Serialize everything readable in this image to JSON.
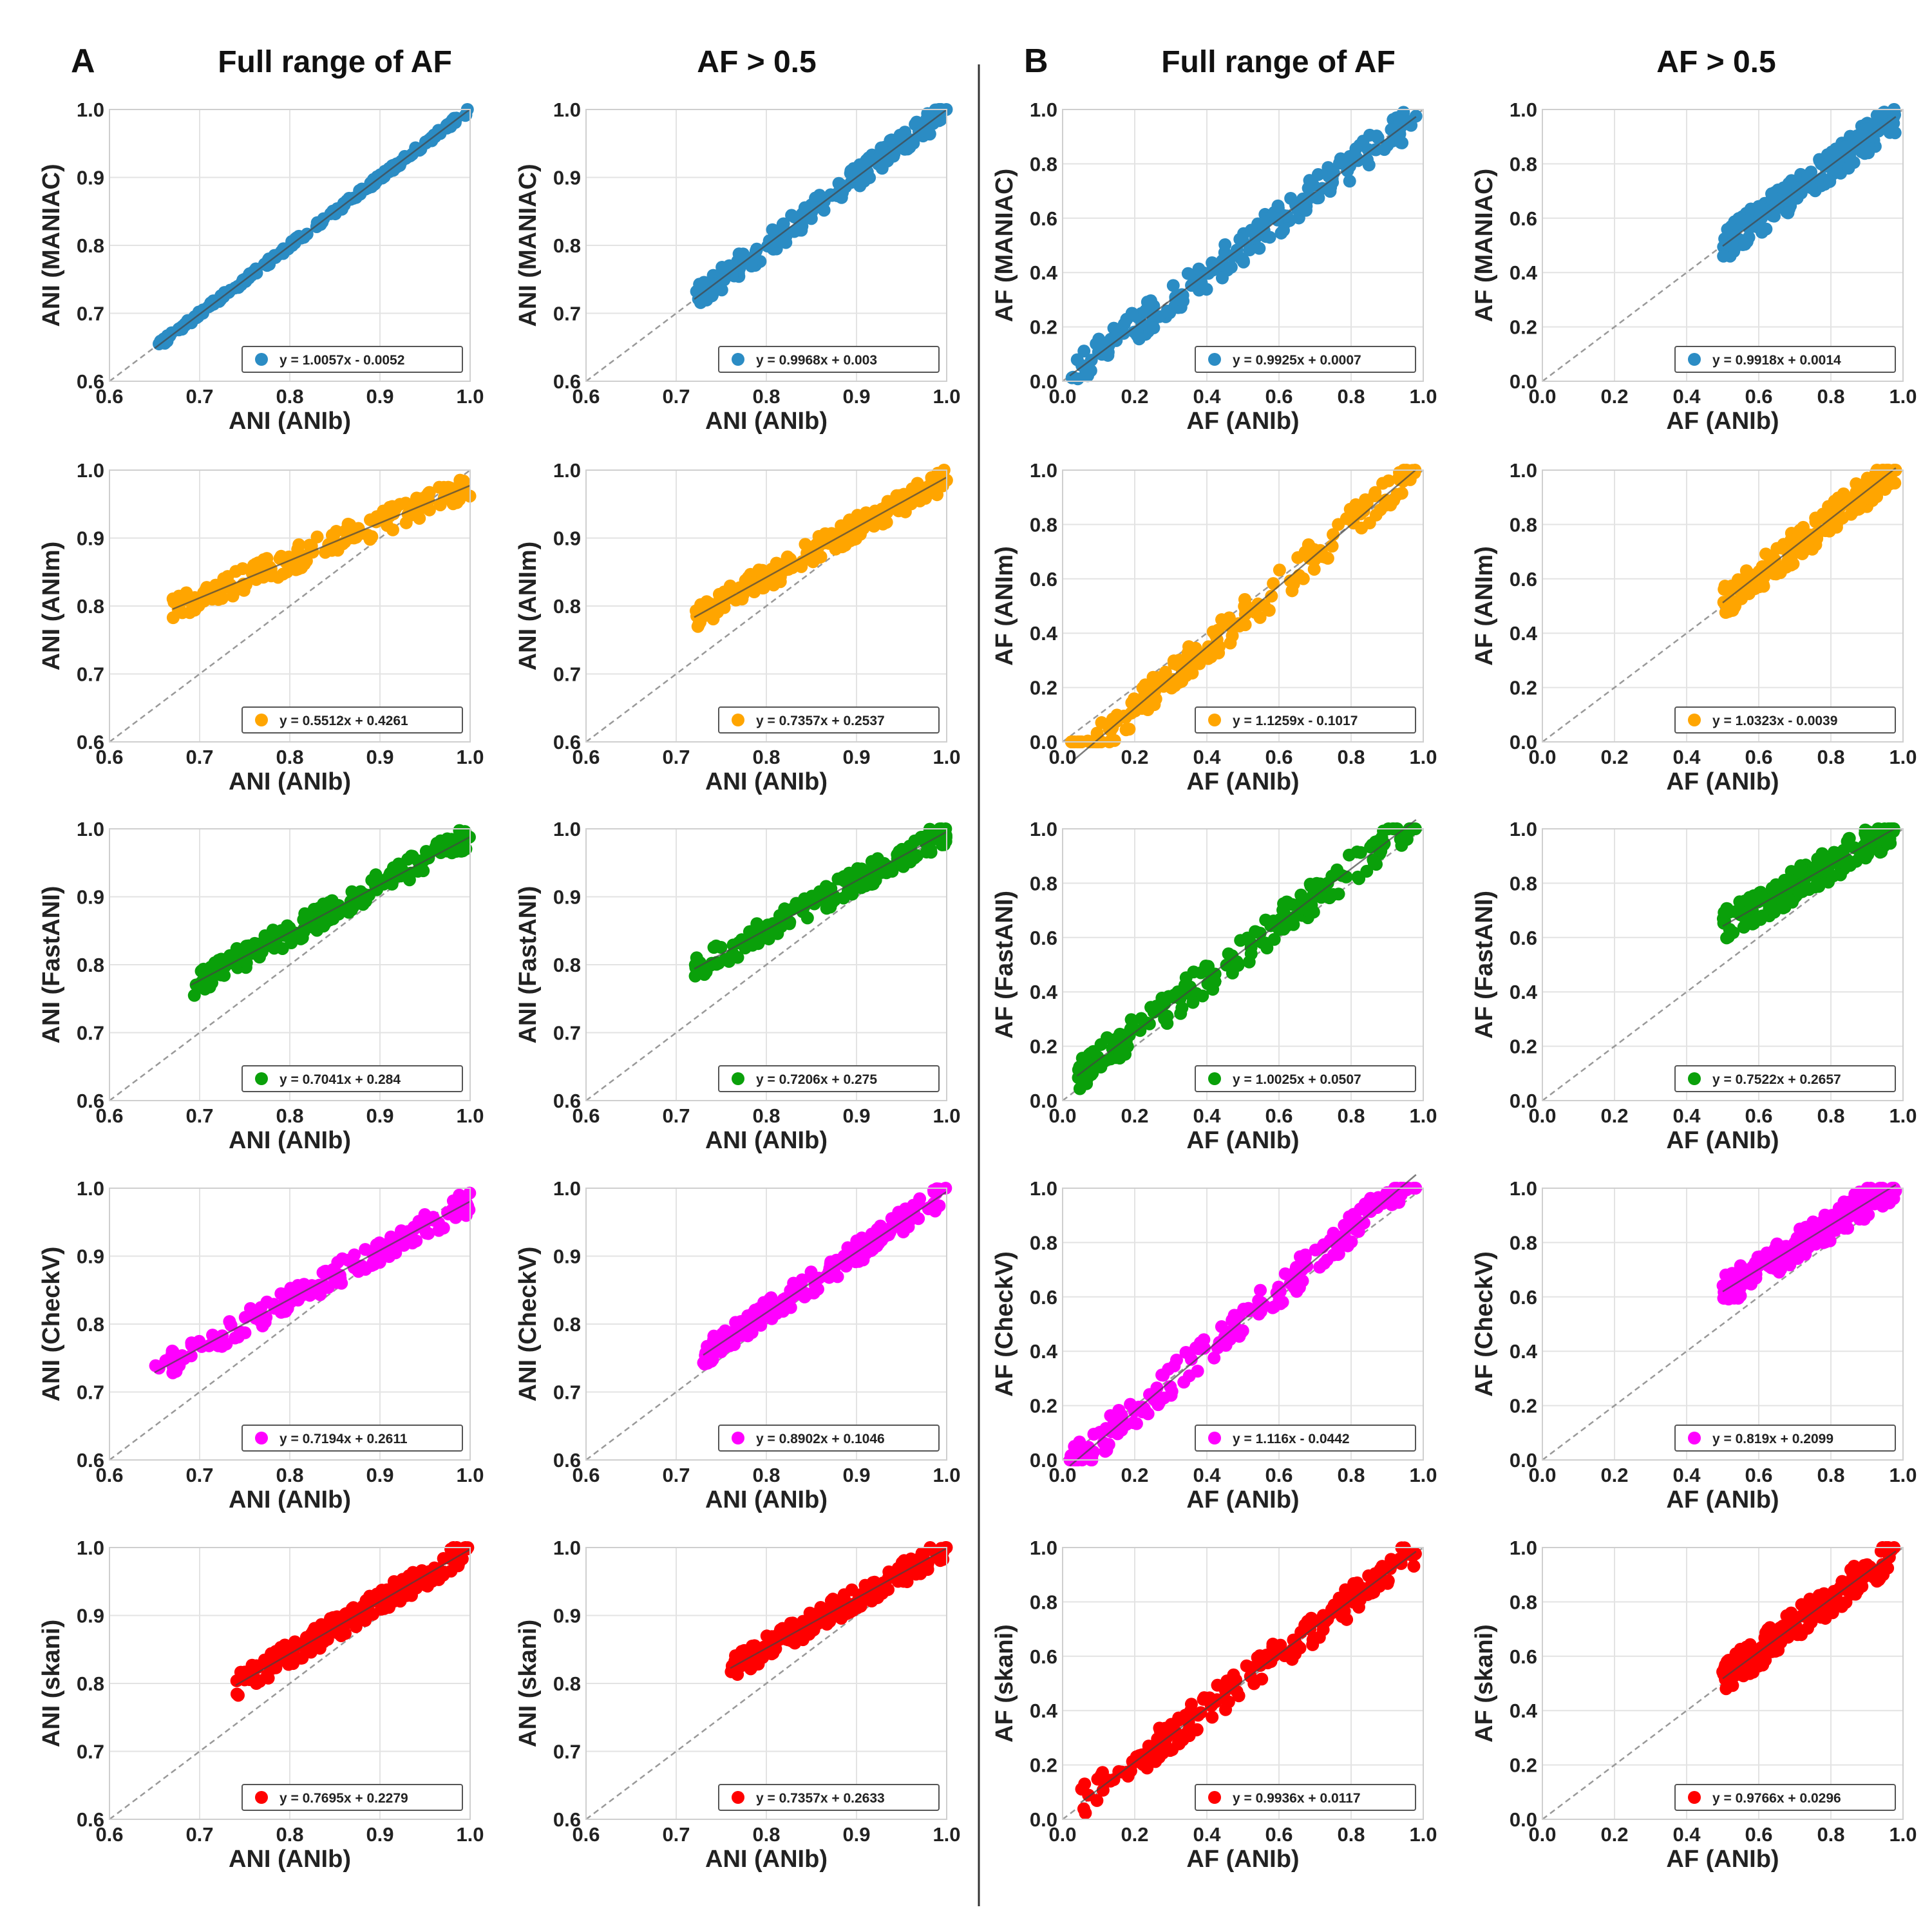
{
  "figure": {
    "panels": [
      {
        "letter": "A",
        "columns": [
          "Full range of AF",
          "AF > 0.5"
        ]
      },
      {
        "letter": "B",
        "columns": [
          "Full range of AF",
          "AF > 0.5"
        ]
      }
    ]
  },
  "tools": [
    {
      "name": "MANIAC",
      "color": "#2b8cc4"
    },
    {
      "name": "ANIm",
      "color": "#ffa500"
    },
    {
      "name": "FastANI",
      "color": "#0aa00a"
    },
    {
      "name": "CheckV",
      "color": "#ff00ff"
    },
    {
      "name": "skani",
      "color": "#ff0000"
    }
  ],
  "chart_data": [
    {
      "type": "scatter",
      "panel": "A",
      "column": "Full range of AF",
      "metric": "ANI",
      "xlabel": "ANI (ANIb)",
      "ylabel": "ANI (MANIAC)",
      "xlim": [
        0.6,
        1.0
      ],
      "ylim": [
        0.6,
        1.0
      ],
      "xticks": [
        "0.6",
        "0.7",
        "0.8",
        "0.9",
        "1.0"
      ],
      "yticks": [
        "0.6",
        "0.7",
        "0.8",
        "0.9",
        "1.0"
      ],
      "color": "#2b8cc4",
      "fit": {
        "slope": 1.0057,
        "intercept": -0.0052
      },
      "legend": "y = 1.0057x - 0.0052",
      "x_range": [
        0.65,
        1.0
      ]
    },
    {
      "type": "scatter",
      "panel": "A",
      "column": "AF > 0.5",
      "metric": "ANI",
      "xlabel": "ANI (ANIb)",
      "ylabel": "ANI (MANIAC)",
      "xlim": [
        0.6,
        1.0
      ],
      "ylim": [
        0.6,
        1.0
      ],
      "xticks": [
        "0.6",
        "0.7",
        "0.8",
        "0.9",
        "1.0"
      ],
      "yticks": [
        "0.6",
        "0.7",
        "0.8",
        "0.9",
        "1.0"
      ],
      "color": "#2b8cc4",
      "fit": {
        "slope": 0.9968,
        "intercept": 0.003
      },
      "legend": "y = 0.9968x + 0.003",
      "x_range": [
        0.72,
        1.0
      ]
    },
    {
      "type": "scatter",
      "panel": "B",
      "column": "Full range of AF",
      "metric": "AF",
      "xlabel": "AF (ANIb)",
      "ylabel": "AF (MANIAC)",
      "xlim": [
        0.0,
        1.0
      ],
      "ylim": [
        0.0,
        1.0
      ],
      "xticks": [
        "0.0",
        "0.2",
        "0.4",
        "0.6",
        "0.8",
        "1.0"
      ],
      "yticks": [
        "0.0",
        "0.2",
        "0.4",
        "0.6",
        "0.8",
        "1.0"
      ],
      "color": "#2b8cc4",
      "fit": {
        "slope": 0.9925,
        "intercept": 0.0007
      },
      "legend": "y = 0.9925x + 0.0007",
      "x_range": [
        0.02,
        0.98
      ]
    },
    {
      "type": "scatter",
      "panel": "B",
      "column": "AF > 0.5",
      "metric": "AF",
      "xlabel": "AF (ANIb)",
      "ylabel": "AF (MANIAC)",
      "xlim": [
        0.0,
        1.0
      ],
      "ylim": [
        0.0,
        1.0
      ],
      "xticks": [
        "0.0",
        "0.2",
        "0.4",
        "0.6",
        "0.8",
        "1.0"
      ],
      "yticks": [
        "0.0",
        "0.2",
        "0.4",
        "0.6",
        "0.8",
        "1.0"
      ],
      "color": "#2b8cc4",
      "fit": {
        "slope": 0.9918,
        "intercept": 0.0014
      },
      "legend": "y = 0.9918x + 0.0014",
      "x_range": [
        0.5,
        0.98
      ]
    },
    {
      "type": "scatter",
      "panel": "A",
      "column": "Full range of AF",
      "metric": "ANI",
      "xlabel": "ANI (ANIb)",
      "ylabel": "ANI (ANIm)",
      "xlim": [
        0.6,
        1.0
      ],
      "ylim": [
        0.6,
        1.0
      ],
      "xticks": [
        "0.6",
        "0.7",
        "0.8",
        "0.9",
        "1.0"
      ],
      "yticks": [
        "0.6",
        "0.7",
        "0.8",
        "0.9",
        "1.0"
      ],
      "color": "#ffa500",
      "fit": {
        "slope": 0.5512,
        "intercept": 0.4261
      },
      "legend": "y = 0.5512x + 0.4261",
      "x_range": [
        0.67,
        1.0
      ]
    },
    {
      "type": "scatter",
      "panel": "A",
      "column": "AF > 0.5",
      "metric": "ANI",
      "xlabel": "ANI (ANIb)",
      "ylabel": "ANI (ANIm)",
      "xlim": [
        0.6,
        1.0
      ],
      "ylim": [
        0.6,
        1.0
      ],
      "xticks": [
        "0.6",
        "0.7",
        "0.8",
        "0.9",
        "1.0"
      ],
      "yticks": [
        "0.6",
        "0.7",
        "0.8",
        "0.9",
        "1.0"
      ],
      "color": "#ffa500",
      "fit": {
        "slope": 0.7357,
        "intercept": 0.2537
      },
      "legend": "y = 0.7357x + 0.2537",
      "x_range": [
        0.72,
        1.0
      ]
    },
    {
      "type": "scatter",
      "panel": "B",
      "column": "Full range of AF",
      "metric": "AF",
      "xlabel": "AF (ANIb)",
      "ylabel": "AF (ANIm)",
      "xlim": [
        0.0,
        1.0
      ],
      "ylim": [
        0.0,
        1.0
      ],
      "xticks": [
        "0.0",
        "0.2",
        "0.4",
        "0.6",
        "0.8",
        "1.0"
      ],
      "yticks": [
        "0.0",
        "0.2",
        "0.4",
        "0.6",
        "0.8",
        "1.0"
      ],
      "color": "#ffa500",
      "fit": {
        "slope": 1.1259,
        "intercept": -0.1017
      },
      "legend": "y = 1.1259x - 0.1017",
      "x_range": [
        0.02,
        0.98
      ]
    },
    {
      "type": "scatter",
      "panel": "B",
      "column": "AF > 0.5",
      "metric": "AF",
      "xlabel": "AF (ANIb)",
      "ylabel": "AF (ANIm)",
      "xlim": [
        0.0,
        1.0
      ],
      "ylim": [
        0.0,
        1.0
      ],
      "xticks": [
        "0.0",
        "0.2",
        "0.4",
        "0.6",
        "0.8",
        "1.0"
      ],
      "yticks": [
        "0.0",
        "0.2",
        "0.4",
        "0.6",
        "0.8",
        "1.0"
      ],
      "color": "#ffa500",
      "fit": {
        "slope": 1.0323,
        "intercept": -0.0039
      },
      "legend": "y = 1.0323x - 0.0039",
      "x_range": [
        0.5,
        0.98
      ]
    },
    {
      "type": "scatter",
      "panel": "A",
      "column": "Full range of AF",
      "metric": "ANI",
      "xlabel": "ANI (ANIb)",
      "ylabel": "ANI (FastANI)",
      "xlim": [
        0.6,
        1.0
      ],
      "ylim": [
        0.6,
        1.0
      ],
      "xticks": [
        "0.6",
        "0.7",
        "0.8",
        "0.9",
        "1.0"
      ],
      "yticks": [
        "0.6",
        "0.7",
        "0.8",
        "0.9",
        "1.0"
      ],
      "color": "#0aa00a",
      "fit": {
        "slope": 0.7041,
        "intercept": 0.284
      },
      "legend": "y = 0.7041x + 0.284",
      "x_range": [
        0.69,
        1.0
      ]
    },
    {
      "type": "scatter",
      "panel": "A",
      "column": "AF > 0.5",
      "metric": "ANI",
      "xlabel": "ANI (ANIb)",
      "ylabel": "ANI (FastANI)",
      "xlim": [
        0.6,
        1.0
      ],
      "ylim": [
        0.6,
        1.0
      ],
      "xticks": [
        "0.6",
        "0.7",
        "0.8",
        "0.9",
        "1.0"
      ],
      "yticks": [
        "0.6",
        "0.7",
        "0.8",
        "0.9",
        "1.0"
      ],
      "color": "#0aa00a",
      "fit": {
        "slope": 0.7206,
        "intercept": 0.275
      },
      "legend": "y = 0.7206x + 0.275",
      "x_range": [
        0.72,
        1.0
      ]
    },
    {
      "type": "scatter",
      "panel": "B",
      "column": "Full range of AF",
      "metric": "AF",
      "xlabel": "AF (ANIb)",
      "ylabel": "AF (FastANI)",
      "xlim": [
        0.0,
        1.0
      ],
      "ylim": [
        0.0,
        1.0
      ],
      "xticks": [
        "0.0",
        "0.2",
        "0.4",
        "0.6",
        "0.8",
        "1.0"
      ],
      "yticks": [
        "0.0",
        "0.2",
        "0.4",
        "0.6",
        "0.8",
        "1.0"
      ],
      "color": "#0aa00a",
      "fit": {
        "slope": 1.0025,
        "intercept": 0.0507
      },
      "legend": "y = 1.0025x + 0.0507",
      "x_range": [
        0.04,
        0.98
      ]
    },
    {
      "type": "scatter",
      "panel": "B",
      "column": "AF > 0.5",
      "metric": "AF",
      "xlabel": "AF (ANIb)",
      "ylabel": "AF (FastANI)",
      "xlim": [
        0.0,
        1.0
      ],
      "ylim": [
        0.0,
        1.0
      ],
      "xticks": [
        "0.0",
        "0.2",
        "0.4",
        "0.6",
        "0.8",
        "1.0"
      ],
      "yticks": [
        "0.0",
        "0.2",
        "0.4",
        "0.6",
        "0.8",
        "1.0"
      ],
      "color": "#0aa00a",
      "fit": {
        "slope": 0.7522,
        "intercept": 0.2657
      },
      "legend": "y = 0.7522x + 0.2657",
      "x_range": [
        0.5,
        0.98
      ]
    },
    {
      "type": "scatter",
      "panel": "A",
      "column": "Full range of AF",
      "metric": "ANI",
      "xlabel": "ANI (ANIb)",
      "ylabel": "ANI (CheckV)",
      "xlim": [
        0.6,
        1.0
      ],
      "ylim": [
        0.6,
        1.0
      ],
      "xticks": [
        "0.6",
        "0.7",
        "0.8",
        "0.9",
        "1.0"
      ],
      "yticks": [
        "0.6",
        "0.7",
        "0.8",
        "0.9",
        "1.0"
      ],
      "color": "#ff00ff",
      "fit": {
        "slope": 0.7194,
        "intercept": 0.2611
      },
      "legend": "y = 0.7194x + 0.2611",
      "x_range": [
        0.65,
        1.0
      ]
    },
    {
      "type": "scatter",
      "panel": "A",
      "column": "AF > 0.5",
      "metric": "ANI",
      "xlabel": "ANI (ANIb)",
      "ylabel": "ANI (CheckV)",
      "xlim": [
        0.6,
        1.0
      ],
      "ylim": [
        0.6,
        1.0
      ],
      "xticks": [
        "0.6",
        "0.7",
        "0.8",
        "0.9",
        "1.0"
      ],
      "yticks": [
        "0.6",
        "0.7",
        "0.8",
        "0.9",
        "1.0"
      ],
      "color": "#ff00ff",
      "fit": {
        "slope": 0.8902,
        "intercept": 0.1046
      },
      "legend": "y = 0.8902x + 0.1046",
      "x_range": [
        0.73,
        1.0
      ]
    },
    {
      "type": "scatter",
      "panel": "B",
      "column": "Full range of AF",
      "metric": "AF",
      "xlabel": "AF (ANIb)",
      "ylabel": "AF (CheckV)",
      "xlim": [
        0.0,
        1.0
      ],
      "ylim": [
        0.0,
        1.0
      ],
      "xticks": [
        "0.0",
        "0.2",
        "0.4",
        "0.6",
        "0.8",
        "1.0"
      ],
      "yticks": [
        "0.0",
        "0.2",
        "0.4",
        "0.6",
        "0.8",
        "1.0"
      ],
      "color": "#ff00ff",
      "fit": {
        "slope": 1.116,
        "intercept": -0.0442
      },
      "legend": "y = 1.116x - 0.0442",
      "x_range": [
        0.02,
        0.98
      ]
    },
    {
      "type": "scatter",
      "panel": "B",
      "column": "AF > 0.5",
      "metric": "AF",
      "xlabel": "AF (ANIb)",
      "ylabel": "AF (CheckV)",
      "xlim": [
        0.0,
        1.0
      ],
      "ylim": [
        0.0,
        1.0
      ],
      "xticks": [
        "0.0",
        "0.2",
        "0.4",
        "0.6",
        "0.8",
        "1.0"
      ],
      "yticks": [
        "0.0",
        "0.2",
        "0.4",
        "0.6",
        "0.8",
        "1.0"
      ],
      "color": "#ff00ff",
      "fit": {
        "slope": 0.819,
        "intercept": 0.2099
      },
      "legend": "y = 0.819x + 0.2099",
      "x_range": [
        0.5,
        0.98
      ]
    },
    {
      "type": "scatter",
      "panel": "A",
      "column": "Full range of AF",
      "metric": "ANI",
      "xlabel": "ANI (ANIb)",
      "ylabel": "ANI (skani)",
      "xlim": [
        0.6,
        1.0
      ],
      "ylim": [
        0.6,
        1.0
      ],
      "xticks": [
        "0.6",
        "0.7",
        "0.8",
        "0.9",
        "1.0"
      ],
      "yticks": [
        "0.6",
        "0.7",
        "0.8",
        "0.9",
        "1.0"
      ],
      "color": "#ff0000",
      "fit": {
        "slope": 0.7695,
        "intercept": 0.2279
      },
      "legend": "y = 0.7695x + 0.2279",
      "x_range": [
        0.74,
        1.0
      ]
    },
    {
      "type": "scatter",
      "panel": "A",
      "column": "AF > 0.5",
      "metric": "ANI",
      "xlabel": "ANI (ANIb)",
      "ylabel": "ANI (skani)",
      "xlim": [
        0.6,
        1.0
      ],
      "ylim": [
        0.6,
        1.0
      ],
      "xticks": [
        "0.6",
        "0.7",
        "0.8",
        "0.9",
        "1.0"
      ],
      "yticks": [
        "0.6",
        "0.7",
        "0.8",
        "0.9",
        "1.0"
      ],
      "color": "#ff0000",
      "fit": {
        "slope": 0.7357,
        "intercept": 0.2633
      },
      "legend": "y = 0.7357x + 0.2633",
      "x_range": [
        0.76,
        1.0
      ]
    },
    {
      "type": "scatter",
      "panel": "B",
      "column": "Full range of AF",
      "metric": "AF",
      "xlabel": "AF (ANIb)",
      "ylabel": "AF (skani)",
      "xlim": [
        0.0,
        1.0
      ],
      "ylim": [
        0.0,
        1.0
      ],
      "xticks": [
        "0.0",
        "0.2",
        "0.4",
        "0.6",
        "0.8",
        "1.0"
      ],
      "yticks": [
        "0.0",
        "0.2",
        "0.4",
        "0.6",
        "0.8",
        "1.0"
      ],
      "color": "#ff0000",
      "fit": {
        "slope": 0.9936,
        "intercept": 0.0117
      },
      "legend": "y = 0.9936x + 0.0117",
      "x_range": [
        0.05,
        0.98
      ]
    },
    {
      "type": "scatter",
      "panel": "B",
      "column": "AF > 0.5",
      "metric": "AF",
      "xlabel": "AF (ANIb)",
      "ylabel": "AF (skani)",
      "xlim": [
        0.0,
        1.0
      ],
      "ylim": [
        0.0,
        1.0
      ],
      "xticks": [
        "0.0",
        "0.2",
        "0.4",
        "0.6",
        "0.8",
        "1.0"
      ],
      "yticks": [
        "0.0",
        "0.2",
        "0.4",
        "0.6",
        "0.8",
        "1.0"
      ],
      "color": "#ff0000",
      "fit": {
        "slope": 0.9766,
        "intercept": 0.0296
      },
      "legend": "y = 0.9766x + 0.0296",
      "x_range": [
        0.5,
        0.98
      ]
    }
  ]
}
